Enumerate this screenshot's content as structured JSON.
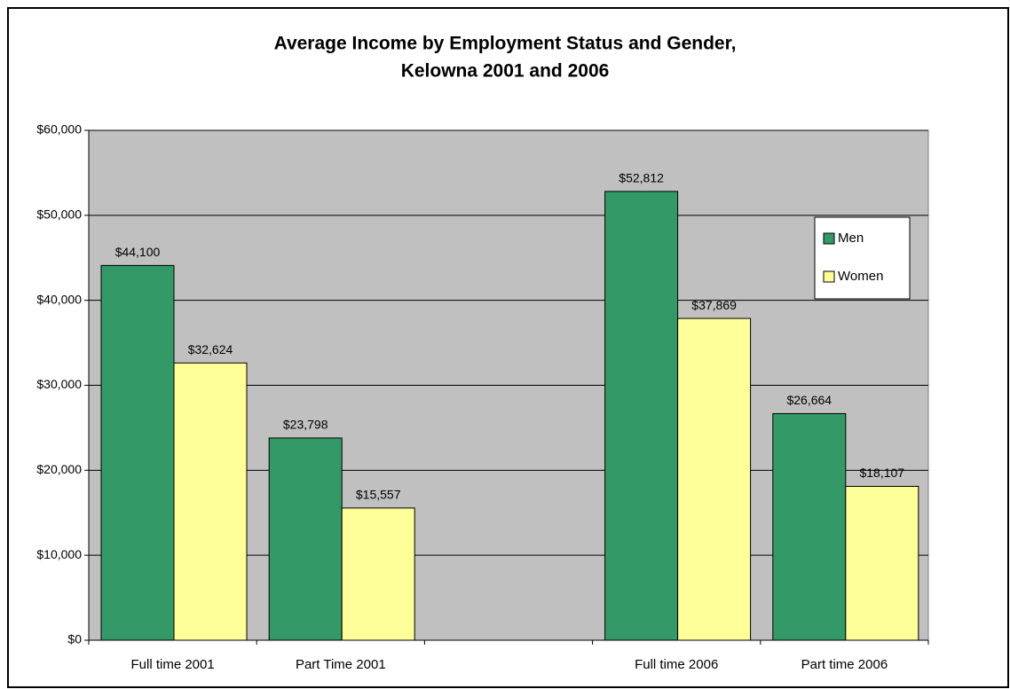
{
  "chart_data": {
    "type": "bar",
    "title": [
      "Average Income by Employment Status and Gender,",
      "Kelowna 2001 and 2006"
    ],
    "categories": [
      "Full time 2001",
      "Part Time 2001",
      null,
      "Full time 2006",
      "Part time 2006"
    ],
    "series": [
      {
        "name": "Men",
        "color": "#339966",
        "values": [
          44100,
          23798,
          null,
          52812,
          26664
        ],
        "value_labels": [
          "$44,100",
          "$23,798",
          null,
          "$52,812",
          "$26,664"
        ]
      },
      {
        "name": "Women",
        "color": "#ffff99",
        "values": [
          32624,
          15557,
          null,
          37869,
          18107
        ],
        "value_labels": [
          "$32,624",
          "$15,557",
          null,
          "$37,869",
          "$18,107"
        ]
      }
    ],
    "ylim": [
      0,
      60000
    ],
    "yticks": [
      {
        "value": 0,
        "label": "$0"
      },
      {
        "value": 10000,
        "label": "$10,000"
      },
      {
        "value": 20000,
        "label": "$20,000"
      },
      {
        "value": 30000,
        "label": "$30,000"
      },
      {
        "value": 40000,
        "label": "$40,000"
      },
      {
        "value": 50000,
        "label": "$50,000"
      },
      {
        "value": 60000,
        "label": "$60,000"
      }
    ],
    "grid": true,
    "plot_background": "#c0c0c0",
    "legend": "right"
  }
}
